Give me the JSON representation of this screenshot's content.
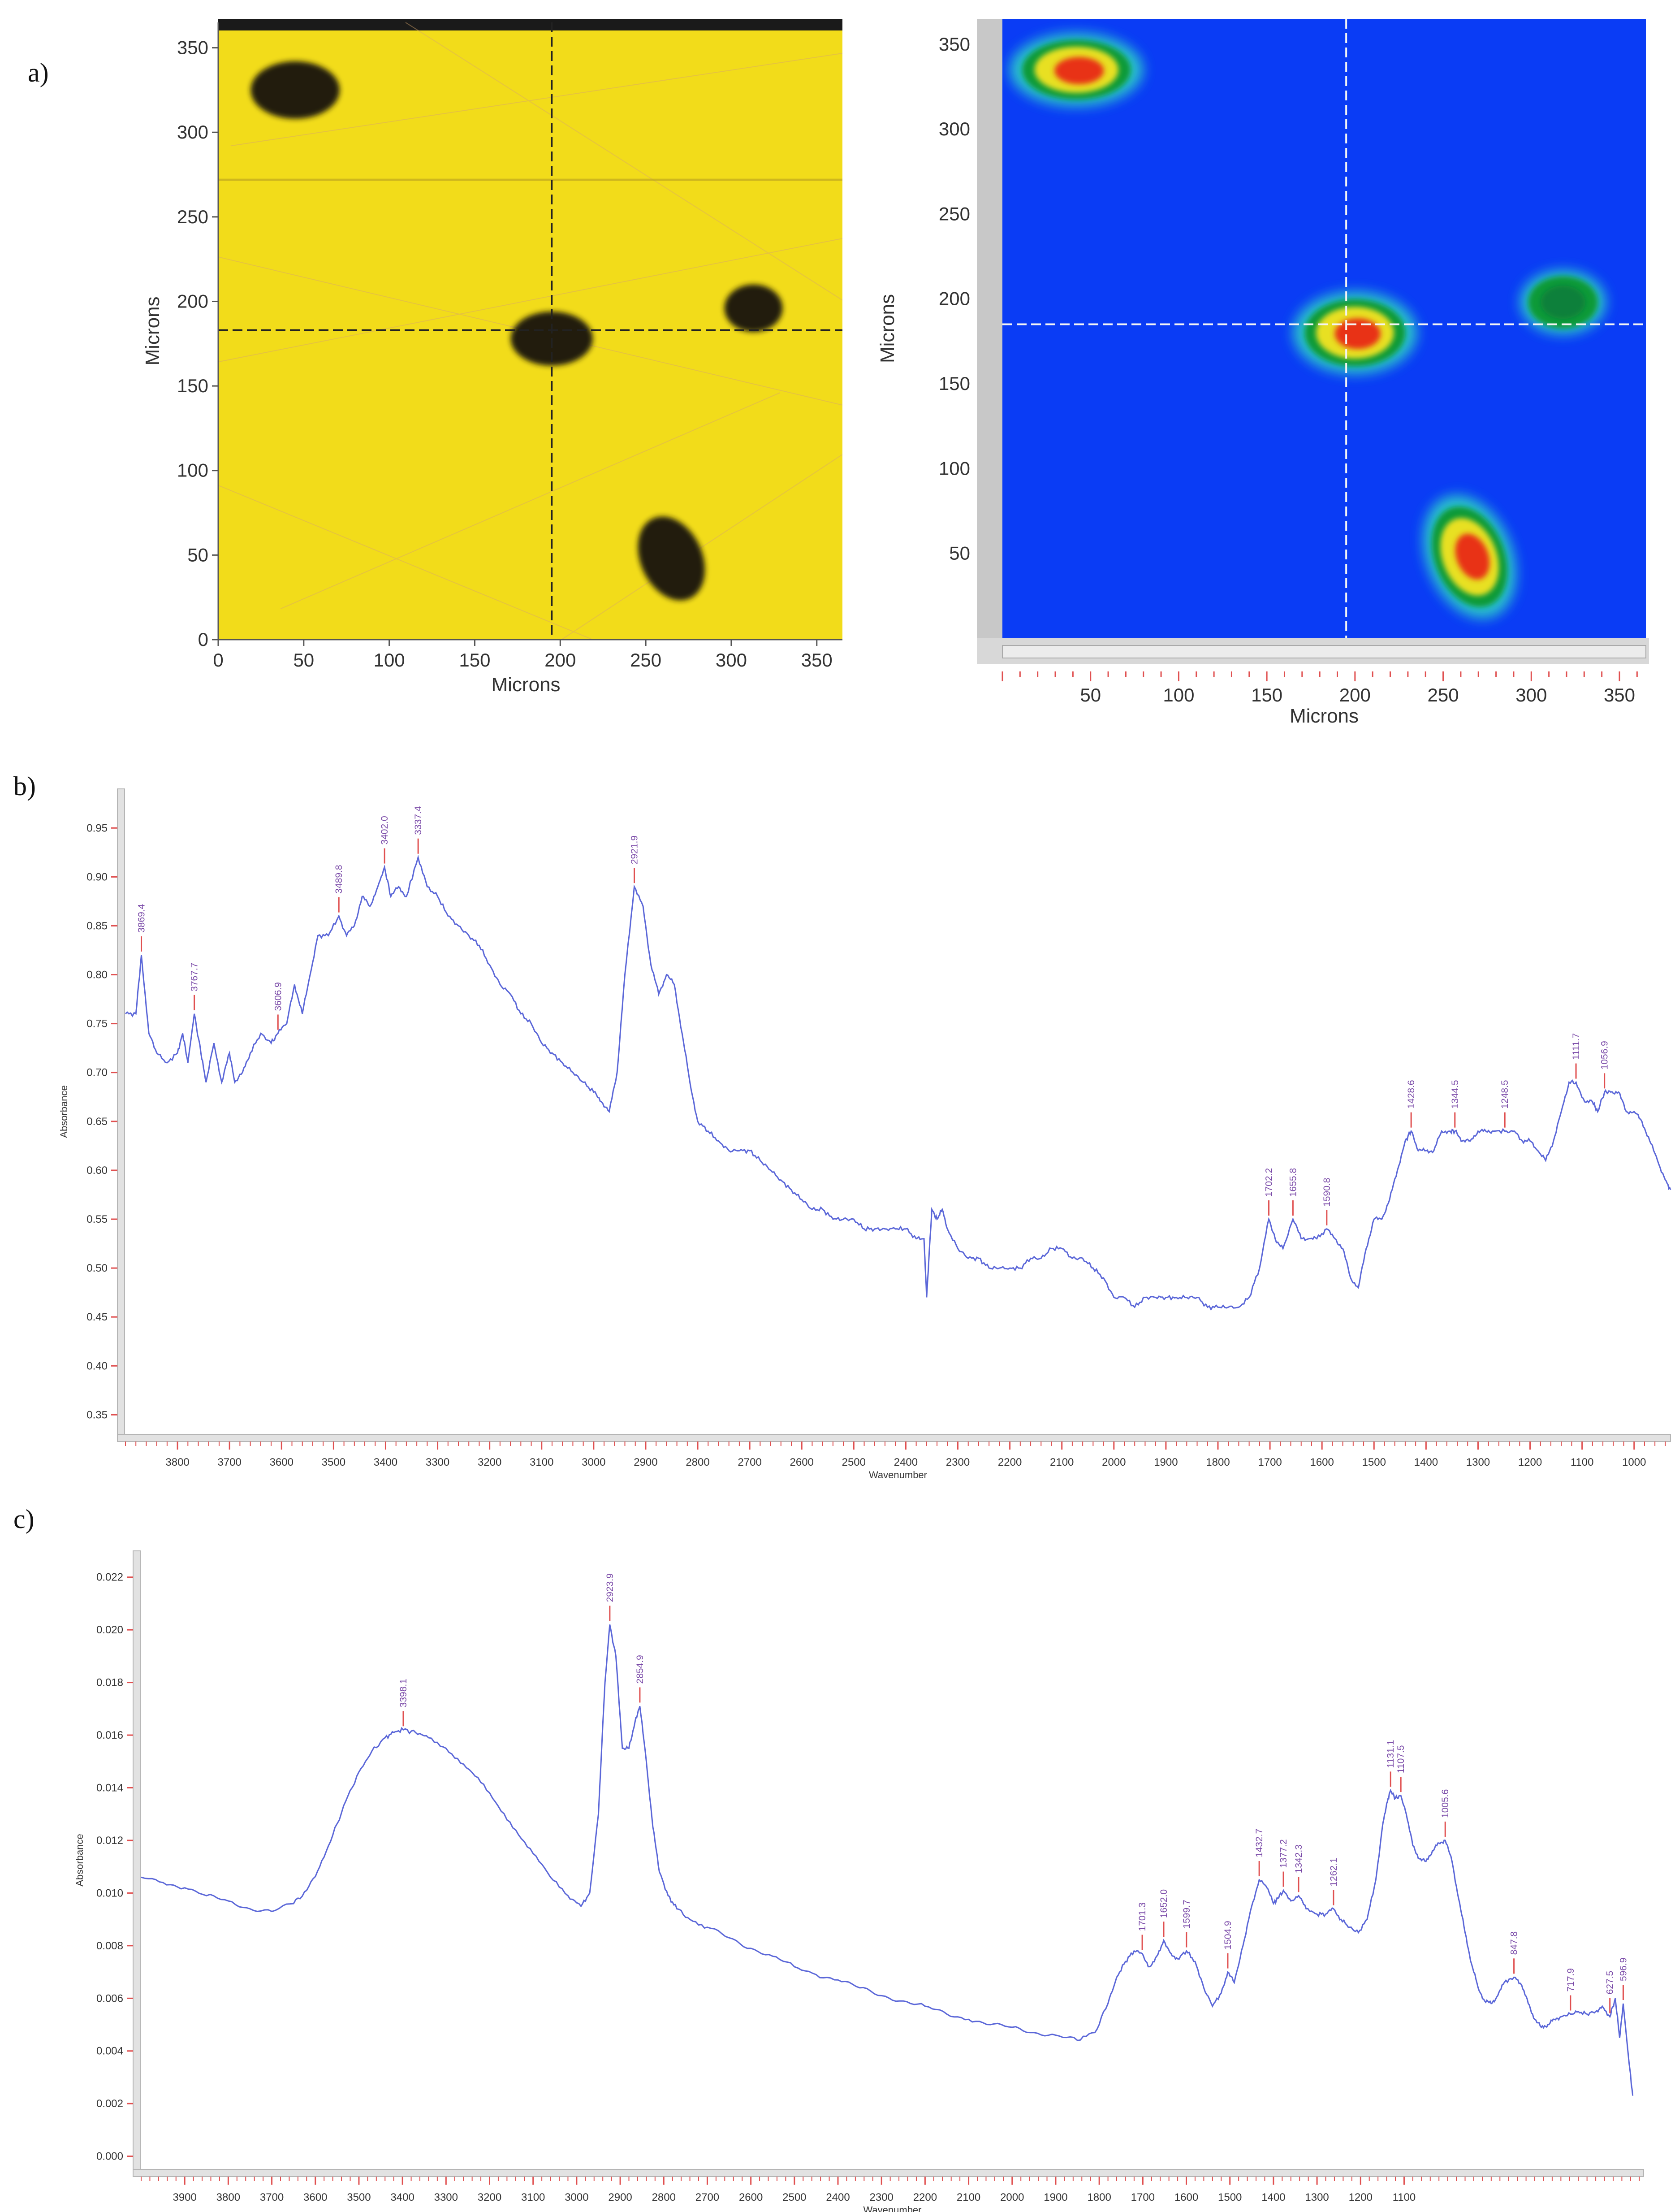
{
  "panels": {
    "a": "a)",
    "b": "b)",
    "c": "c)"
  },
  "colors": {
    "optical_background": "#f2dc1a",
    "dark_particle": "#241a10",
    "map_background": "#0a3cf5",
    "spectrum_line": "#5b67d8",
    "peak_marker": "#e05050",
    "peak_label": "#7a4aa8",
    "frame_gray": "#c8c8c8"
  },
  "chart_data": [
    {
      "type": "heatmap",
      "panel": "a",
      "view": "optical-image",
      "xlabel": "Microns",
      "ylabel": "Microns",
      "xlim": [
        0,
        365
      ],
      "ylim": [
        0,
        365
      ],
      "xticks": [
        0,
        50,
        100,
        150,
        200,
        250,
        300,
        350
      ],
      "yticks": [
        0,
        50,
        100,
        150,
        200,
        250,
        300,
        350
      ],
      "crosshair": {
        "x": 195,
        "y": 183
      },
      "particles": [
        {
          "x": 45,
          "y": 325,
          "rx": 26,
          "ry": 17
        },
        {
          "x": 195,
          "y": 178,
          "rx": 24,
          "ry": 16
        },
        {
          "x": 313,
          "y": 196,
          "rx": 17,
          "ry": 14
        },
        {
          "x": 265,
          "y": 48,
          "rx": 18,
          "ry": 26
        }
      ]
    },
    {
      "type": "heatmap",
      "panel": "a",
      "view": "chemical-map",
      "xlabel": "Microns",
      "ylabel": "Microns",
      "xlim": [
        0,
        365
      ],
      "ylim": [
        0,
        365
      ],
      "xticks": [
        50,
        100,
        150,
        200,
        250,
        300,
        350
      ],
      "yticks": [
        50,
        100,
        150,
        200,
        250,
        300,
        350
      ],
      "crosshair": {
        "x": 195,
        "y": 185
      },
      "hotspots": [
        {
          "x": 42,
          "y": 335,
          "rx": 28,
          "ry": 16,
          "intensity": 0.95
        },
        {
          "x": 200,
          "y": 180,
          "rx": 26,
          "ry": 18,
          "intensity": 1.0
        },
        {
          "x": 318,
          "y": 198,
          "rx": 18,
          "ry": 14,
          "intensity": 0.55
        },
        {
          "x": 265,
          "y": 48,
          "rx": 18,
          "ry": 28,
          "intensity": 0.9
        }
      ]
    },
    {
      "type": "line",
      "panel": "b",
      "xlabel": "Wavenumber",
      "ylabel": "Absorbance",
      "xlim": [
        3900,
        930
      ],
      "ylim": [
        0.33,
        0.99
      ],
      "xticks": [
        3800,
        3700,
        3600,
        3500,
        3400,
        3300,
        3200,
        3100,
        3000,
        2900,
        2800,
        2700,
        2600,
        2500,
        2400,
        2300,
        2200,
        2100,
        2000,
        1900,
        1800,
        1700,
        1600,
        1500,
        1400,
        1300,
        1200,
        1100,
        1000
      ],
      "yticks": [
        0.35,
        0.4,
        0.45,
        0.5,
        0.55,
        0.6,
        0.65,
        0.7,
        0.75,
        0.8,
        0.85,
        0.9,
        0.95
      ],
      "series": [
        {
          "x": [
            3900,
            3880,
            3869.4,
            3855,
            3840,
            3820,
            3800,
            3790,
            3780,
            3767.7,
            3755,
            3745,
            3730,
            3715,
            3700,
            3690,
            3675,
            3660,
            3640,
            3620,
            3606.9,
            3590,
            3575,
            3560,
            3545,
            3530,
            3510,
            3489.8,
            3475,
            3460,
            3445,
            3430,
            3415,
            3402.0,
            3390,
            3375,
            3360,
            3337.4,
            3320,
            3300,
            3280,
            3260,
            3240,
            3220,
            3200,
            3180,
            3160,
            3140,
            3120,
            3100,
            3080,
            3060,
            3040,
            3020,
            3000,
            2985,
            2970,
            2955,
            2940,
            2921.9,
            2905,
            2890,
            2875,
            2860,
            2845,
            2830,
            2815,
            2800,
            2780,
            2760,
            2740,
            2720,
            2700,
            2680,
            2660,
            2640,
            2620,
            2600,
            2580,
            2560,
            2540,
            2520,
            2500,
            2480,
            2460,
            2440,
            2420,
            2400,
            2380,
            2365,
            2360,
            2350,
            2340,
            2330,
            2320,
            2300,
            2280,
            2260,
            2240,
            2220,
            2200,
            2180,
            2160,
            2140,
            2120,
            2100,
            2080,
            2060,
            2040,
            2020,
            2000,
            1980,
            1960,
            1940,
            1920,
            1900,
            1880,
            1860,
            1840,
            1820,
            1800,
            1780,
            1760,
            1740,
            1720,
            1702.2,
            1690,
            1675,
            1655.8,
            1640,
            1625,
            1610,
            1590.8,
            1575,
            1560,
            1545,
            1530,
            1515,
            1500,
            1485,
            1470,
            1455,
            1440,
            1428.6,
            1415,
            1400,
            1385,
            1370,
            1355,
            1344.5,
            1330,
            1315,
            1300,
            1285,
            1270,
            1248.5,
            1230,
            1215,
            1200,
            1185,
            1170,
            1155,
            1140,
            1125,
            1111.7,
            1095,
            1080,
            1070,
            1056.9,
            1045,
            1030,
            1015,
            1000,
            985,
            970,
            955,
            940,
            930
          ],
          "y": [
            0.76,
            0.76,
            0.82,
            0.74,
            0.72,
            0.71,
            0.72,
            0.74,
            0.71,
            0.76,
            0.72,
            0.69,
            0.73,
            0.69,
            0.72,
            0.69,
            0.7,
            0.72,
            0.74,
            0.73,
            0.74,
            0.75,
            0.79,
            0.76,
            0.8,
            0.84,
            0.84,
            0.86,
            0.84,
            0.85,
            0.88,
            0.87,
            0.89,
            0.91,
            0.88,
            0.89,
            0.88,
            0.92,
            0.89,
            0.88,
            0.86,
            0.85,
            0.84,
            0.83,
            0.81,
            0.79,
            0.78,
            0.76,
            0.75,
            0.73,
            0.72,
            0.71,
            0.7,
            0.69,
            0.68,
            0.67,
            0.66,
            0.7,
            0.8,
            0.89,
            0.87,
            0.81,
            0.78,
            0.8,
            0.79,
            0.74,
            0.69,
            0.65,
            0.64,
            0.63,
            0.62,
            0.62,
            0.62,
            0.61,
            0.6,
            0.59,
            0.58,
            0.57,
            0.56,
            0.56,
            0.55,
            0.55,
            0.55,
            0.54,
            0.54,
            0.54,
            0.54,
            0.54,
            0.53,
            0.53,
            0.47,
            0.56,
            0.55,
            0.56,
            0.54,
            0.52,
            0.51,
            0.51,
            0.5,
            0.5,
            0.5,
            0.5,
            0.51,
            0.51,
            0.52,
            0.52,
            0.51,
            0.51,
            0.5,
            0.49,
            0.47,
            0.47,
            0.46,
            0.47,
            0.47,
            0.47,
            0.47,
            0.47,
            0.47,
            0.46,
            0.46,
            0.46,
            0.46,
            0.47,
            0.5,
            0.55,
            0.53,
            0.52,
            0.55,
            0.53,
            0.53,
            0.53,
            0.54,
            0.53,
            0.52,
            0.49,
            0.48,
            0.52,
            0.55,
            0.55,
            0.57,
            0.6,
            0.63,
            0.64,
            0.62,
            0.62,
            0.62,
            0.64,
            0.64,
            0.64,
            0.63,
            0.63,
            0.64,
            0.64,
            0.64,
            0.64,
            0.64,
            0.63,
            0.63,
            0.62,
            0.61,
            0.63,
            0.66,
            0.69,
            0.69,
            0.67,
            0.67,
            0.66,
            0.68,
            0.68,
            0.68,
            0.66,
            0.66,
            0.65,
            0.63,
            0.61,
            0.59,
            0.58
          ]
        }
      ],
      "peaks": [
        {
          "x": 3869.4,
          "label": "3869.4"
        },
        {
          "x": 3767.7,
          "label": "3767.7"
        },
        {
          "x": 3606.9,
          "label": "3606.9"
        },
        {
          "x": 3489.8,
          "label": "3489.8"
        },
        {
          "x": 3402.0,
          "label": "3402.0"
        },
        {
          "x": 3337.4,
          "label": "3337.4"
        },
        {
          "x": 2921.9,
          "label": "2921.9"
        },
        {
          "x": 1702.2,
          "label": "1702.2"
        },
        {
          "x": 1655.8,
          "label": "1655.8"
        },
        {
          "x": 1590.8,
          "label": "1590.8"
        },
        {
          "x": 1428.6,
          "label": "1428.6"
        },
        {
          "x": 1344.5,
          "label": "1344.5"
        },
        {
          "x": 1248.5,
          "label": "1248.5"
        },
        {
          "x": 1111.7,
          "label": "1111.7"
        },
        {
          "x": 1056.9,
          "label": "1056.9"
        }
      ]
    },
    {
      "type": "line",
      "panel": "c",
      "xlabel": "Wavenumber",
      "ylabel": "Absorbance",
      "xlim": [
        4000,
        550
      ],
      "ylim": [
        -0.0005,
        0.023
      ],
      "xticks": [
        3900,
        3800,
        3700,
        3600,
        3500,
        3400,
        3300,
        3200,
        3100,
        3000,
        2900,
        2800,
        2700,
        2600,
        2500,
        2400,
        2300,
        2200,
        2100,
        2000,
        1900,
        1800,
        1700,
        1600,
        1500,
        1400,
        1300,
        1200,
        1100
      ],
      "yticks": [
        0.0,
        0.002,
        0.004,
        0.006,
        0.008,
        0.01,
        0.012,
        0.014,
        0.016,
        0.018,
        0.02,
        0.022
      ],
      "series": [
        {
          "x": [
            4000,
            3950,
            3900,
            3850,
            3800,
            3750,
            3700,
            3650,
            3620,
            3590,
            3560,
            3530,
            3500,
            3470,
            3440,
            3420,
            3398.1,
            3370,
            3340,
            3300,
            3260,
            3220,
            3180,
            3140,
            3100,
            3060,
            3020,
            2990,
            2970,
            2950,
            2935,
            2923.9,
            2910,
            2895,
            2880,
            2866,
            2854.9,
            2840,
            2825,
            2810,
            2790,
            2770,
            2740,
            2700,
            2650,
            2600,
            2550,
            2500,
            2450,
            2400,
            2350,
            2300,
            2250,
            2200,
            2150,
            2100,
            2050,
            2000,
            1950,
            1900,
            1850,
            1810,
            1780,
            1760,
            1740,
            1720,
            1701.3,
            1685,
            1668,
            1652.0,
            1635,
            1620,
            1599.7,
            1580,
            1560,
            1540,
            1520,
            1504.9,
            1490,
            1470,
            1450,
            1432.7,
            1415,
            1400,
            1390,
            1377.2,
            1360,
            1342.3,
            1325,
            1300,
            1280,
            1262.1,
            1245,
            1225,
            1205,
            1185,
            1165,
            1150,
            1140,
            1131.1,
            1120,
            1107.5,
            1095,
            1080,
            1065,
            1050,
            1035,
            1020,
            1005.6,
            990,
            975,
            960,
            945,
            930,
            915,
            900,
            885,
            870,
            847.8,
            830,
            815,
            800,
            785,
            770,
            755,
            740,
            717.9,
            700,
            680,
            660,
            645,
            627.5,
            615,
            605,
            596.9,
            585,
            575
          ],
          "y": [
            0.0106,
            0.0104,
            0.0102,
            0.0099,
            0.0097,
            0.0094,
            0.0093,
            0.0096,
            0.0101,
            0.011,
            0.0122,
            0.0135,
            0.0146,
            0.0154,
            0.0159,
            0.0161,
            0.0162,
            0.0161,
            0.0159,
            0.0155,
            0.0149,
            0.0142,
            0.0133,
            0.0124,
            0.0115,
            0.0106,
            0.0099,
            0.0095,
            0.01,
            0.013,
            0.018,
            0.0202,
            0.019,
            0.0155,
            0.0155,
            0.0165,
            0.0171,
            0.015,
            0.0125,
            0.0108,
            0.0099,
            0.0094,
            0.009,
            0.0087,
            0.0083,
            0.0079,
            0.0076,
            0.0072,
            0.0069,
            0.0067,
            0.0064,
            0.0061,
            0.0059,
            0.0057,
            0.0054,
            0.0052,
            0.005,
            0.0049,
            0.0047,
            0.0046,
            0.0044,
            0.0047,
            0.0058,
            0.0068,
            0.0074,
            0.0078,
            0.0077,
            0.0072,
            0.0076,
            0.0082,
            0.0077,
            0.0075,
            0.0078,
            0.0074,
            0.0064,
            0.0057,
            0.0062,
            0.007,
            0.0066,
            0.008,
            0.0095,
            0.0105,
            0.0102,
            0.0096,
            0.0098,
            0.0101,
            0.0097,
            0.0099,
            0.0094,
            0.0092,
            0.0092,
            0.0094,
            0.009,
            0.0087,
            0.0085,
            0.009,
            0.0105,
            0.0125,
            0.0134,
            0.0139,
            0.0136,
            0.0137,
            0.013,
            0.0118,
            0.0113,
            0.0112,
            0.0116,
            0.0119,
            0.012,
            0.0112,
            0.0098,
            0.0085,
            0.0073,
            0.0064,
            0.0059,
            0.0058,
            0.0061,
            0.0066,
            0.0068,
            0.0065,
            0.0058,
            0.0052,
            0.0049,
            0.005,
            0.0052,
            0.0053,
            0.0054,
            0.0055,
            0.0054,
            0.0055,
            0.0057,
            0.0053,
            0.006,
            0.0045,
            0.0058,
            0.0038,
            0.0023
          ]
        }
      ],
      "peaks": [
        {
          "x": 3398.1,
          "label": "3398.1"
        },
        {
          "x": 2923.9,
          "label": "2923.9"
        },
        {
          "x": 2854.9,
          "label": "2854.9"
        },
        {
          "x": 1701.3,
          "label": "1701.3"
        },
        {
          "x": 1652.0,
          "label": "1652.0"
        },
        {
          "x": 1599.7,
          "label": "1599.7"
        },
        {
          "x": 1504.9,
          "label": "1504.9"
        },
        {
          "x": 1432.7,
          "label": "1432.7"
        },
        {
          "x": 1377.2,
          "label": "1377.2"
        },
        {
          "x": 1342.3,
          "label": "1342.3"
        },
        {
          "x": 1262.1,
          "label": "1262.1"
        },
        {
          "x": 1131.1,
          "label": "1131.1"
        },
        {
          "x": 1107.5,
          "label": "1107.5"
        },
        {
          "x": 1005.6,
          "label": "1005.6"
        },
        {
          "x": 847.8,
          "label": "847.8"
        },
        {
          "x": 717.9,
          "label": "717.9"
        },
        {
          "x": 627.5,
          "label": "627.5"
        },
        {
          "x": 596.9,
          "label": "596.9"
        }
      ]
    }
  ]
}
